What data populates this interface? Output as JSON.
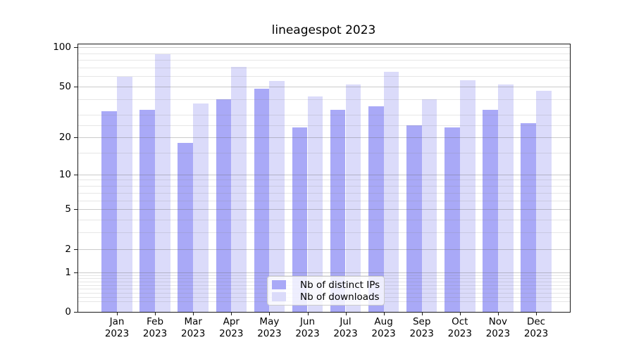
{
  "chart_data": {
    "type": "bar",
    "title": "lineagespot 2023",
    "categories": [
      "Jan",
      "Feb",
      "Mar",
      "Apr",
      "May",
      "Jun",
      "Jul",
      "Aug",
      "Sep",
      "Oct",
      "Nov",
      "Dec"
    ],
    "year_label": "2023",
    "series": [
      {
        "name": "Nb of distinct IPs",
        "color": "#a9a9f7",
        "values": [
          32,
          33,
          18,
          40,
          48,
          24,
          33,
          35,
          25,
          24,
          33,
          26
        ]
      },
      {
        "name": "Nb of downloads",
        "color": "#dbdbfa",
        "values": [
          59,
          88,
          37,
          71,
          55,
          42,
          52,
          65,
          40,
          56,
          52,
          46
        ]
      }
    ],
    "xlabel": "",
    "ylabel": "",
    "yscale": "log1p",
    "ylim": [
      0,
      106
    ],
    "yticks": [
      0,
      1,
      2,
      5,
      10,
      20,
      50,
      100
    ],
    "minor_gridlines": [
      0.2,
      0.3,
      0.4,
      0.5,
      0.6,
      0.7,
      0.8,
      0.9,
      3,
      4,
      6,
      7,
      8,
      9,
      15,
      25,
      30,
      40,
      60,
      70,
      80,
      90
    ],
    "grid": "on",
    "legend_position": "lower center",
    "colors": {
      "axis": "#1a1a1a",
      "major_grid": "#c9c9c9",
      "minor_grid": "#e6e6e6",
      "text": "#000000",
      "background": "#ffffff"
    }
  }
}
